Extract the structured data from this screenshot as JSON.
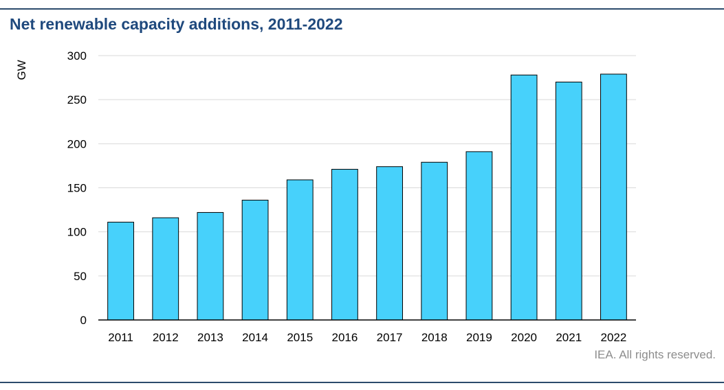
{
  "chart_data": {
    "type": "bar",
    "title": "Net renewable capacity additions, 2011-2022",
    "ylabel": "GW",
    "xlabel": "",
    "categories": [
      "2011",
      "2012",
      "2013",
      "2014",
      "2015",
      "2016",
      "2017",
      "2018",
      "2019",
      "2020",
      "2021",
      "2022"
    ],
    "values": [
      111,
      116,
      122,
      136,
      159,
      171,
      174,
      179,
      191,
      278,
      270,
      279
    ],
    "ylim": [
      0,
      300
    ],
    "yticks": [
      0,
      50,
      100,
      150,
      200,
      250,
      300
    ],
    "grid": true,
    "legend": "none",
    "bar_color": "#47d1fb",
    "bar_edge_color": "#000000"
  },
  "credit": "IEA. All rights reserved."
}
